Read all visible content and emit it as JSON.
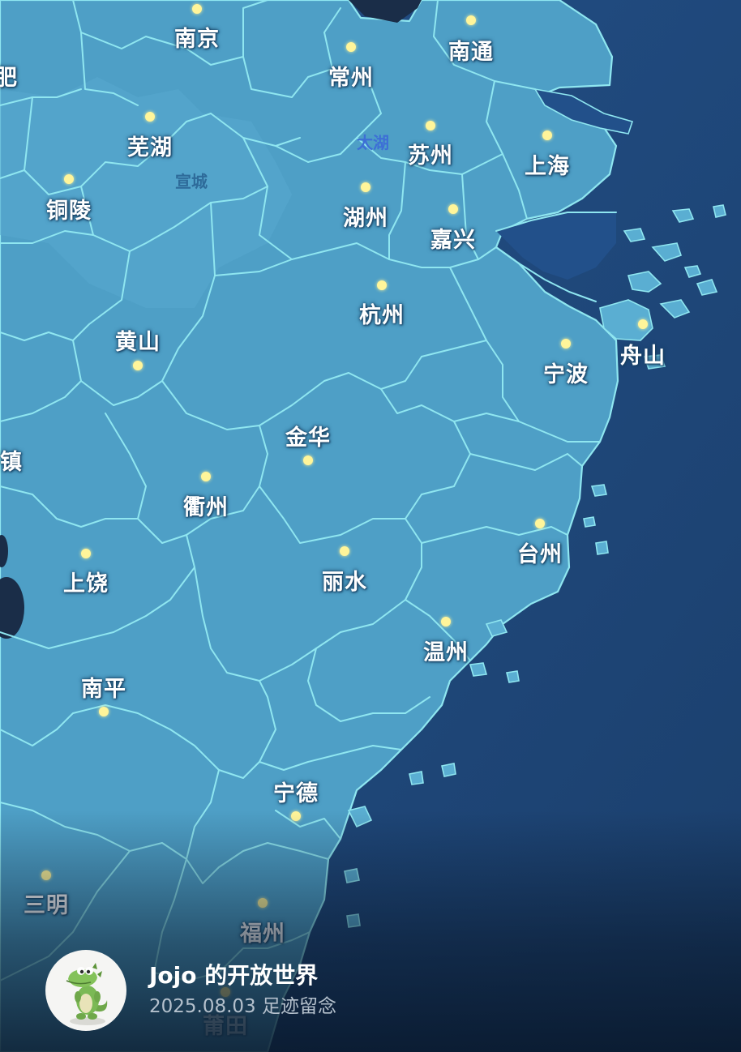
{
  "colors": {
    "sea": "#1f4a7a",
    "land": "#4e9fc6",
    "border": "#8fe6f0",
    "city_dot": "#fff59a"
  },
  "cities": [
    {
      "id": "nanjing",
      "name": "南京"
    },
    {
      "id": "changzhou",
      "name": "常州"
    },
    {
      "id": "nantong",
      "name": "南通"
    },
    {
      "id": "wuhu",
      "name": "芜湖"
    },
    {
      "id": "suzhou",
      "name": "苏州"
    },
    {
      "id": "shanghai",
      "name": "上海"
    },
    {
      "id": "tongling",
      "name": "铜陵"
    },
    {
      "id": "huzhou",
      "name": "湖州"
    },
    {
      "id": "jiaxing",
      "name": "嘉兴"
    },
    {
      "id": "hangzhou",
      "name": "杭州"
    },
    {
      "id": "huangshan",
      "name": "黄山"
    },
    {
      "id": "ningbo",
      "name": "宁波"
    },
    {
      "id": "zhoushan",
      "name": "舟山"
    },
    {
      "id": "jinhua",
      "name": "金华"
    },
    {
      "id": "quzhou",
      "name": "衢州"
    },
    {
      "id": "taizhou",
      "name": "台州"
    },
    {
      "id": "shangrao",
      "name": "上饶"
    },
    {
      "id": "lishui",
      "name": "丽水"
    },
    {
      "id": "wenzhou",
      "name": "温州"
    },
    {
      "id": "nanping",
      "name": "南平"
    },
    {
      "id": "ningde",
      "name": "宁德"
    },
    {
      "id": "sanming",
      "name": "三明"
    },
    {
      "id": "fuzhou",
      "name": "福州"
    },
    {
      "id": "putian",
      "name": "莆田"
    }
  ],
  "partial_labels": {
    "hefei_fragment": "肥",
    "jingdezhen_fragment": "镇"
  },
  "minor_labels": {
    "xuancheng": "宣城",
    "taihu": "太湖"
  },
  "footer": {
    "avatar_icon": "crocodile-mascot-icon",
    "title": "Jojo 的开放世界",
    "subtitle": "2025.08.03 足迹留念"
  }
}
